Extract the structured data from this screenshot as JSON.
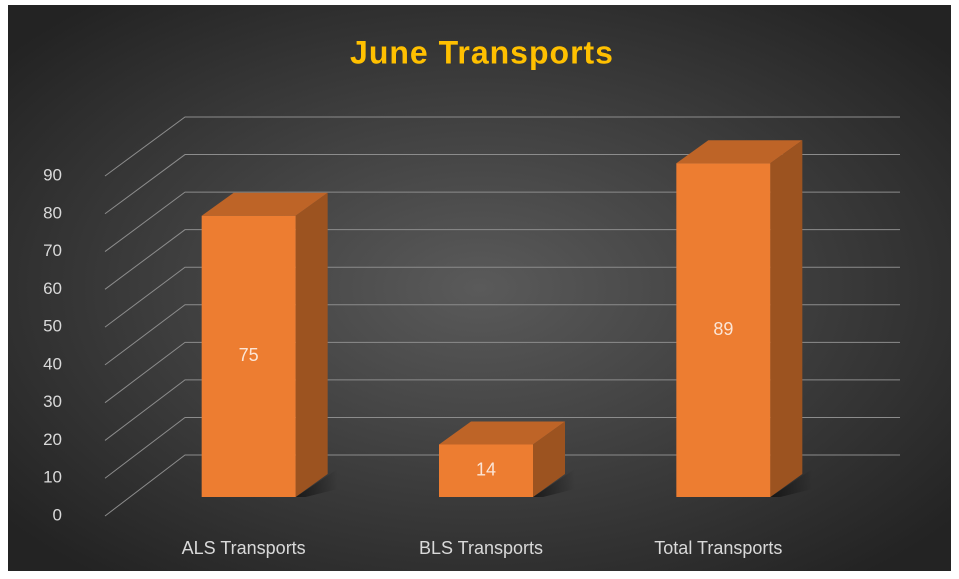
{
  "chart_data": {
    "type": "bar3d",
    "title": "June Transports",
    "categories": [
      "ALS Transports",
      "BLS Transports",
      "Total Transports"
    ],
    "values": [
      75,
      14,
      89
    ],
    "color": "#ed7d31",
    "ylim": [
      0,
      90
    ],
    "yticks": [
      0,
      10,
      20,
      30,
      40,
      50,
      60,
      70,
      80,
      90
    ],
    "grid": true
  }
}
